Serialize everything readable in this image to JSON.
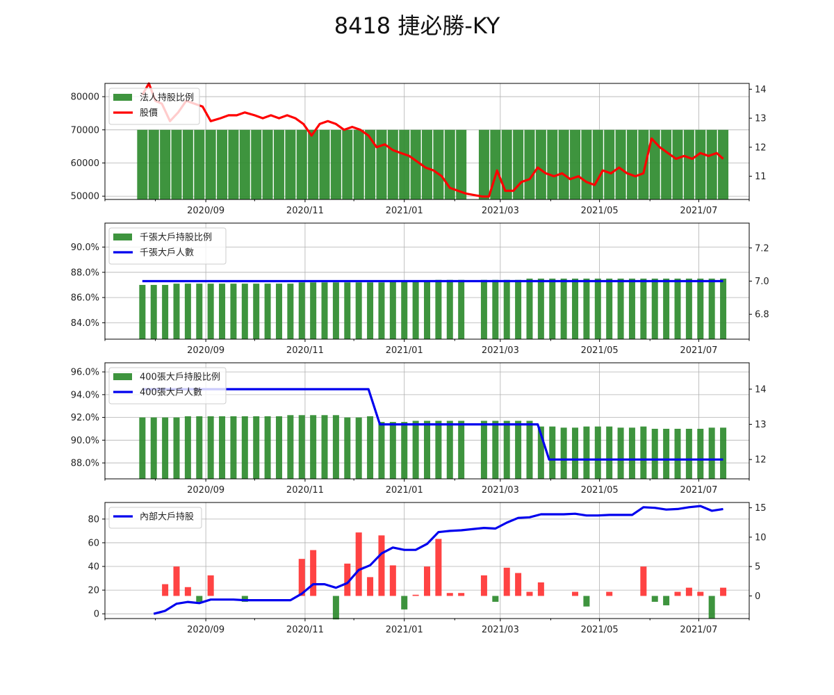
{
  "title": "8418 捷必勝-KY",
  "colors": {
    "bar_green": "#2e8b2e",
    "bar_red": "#ff3333",
    "line_red": "#ff0000",
    "line_blue": "#0000ee",
    "grid": "#b0b0b0"
  },
  "x_ticks": [
    "2020/09",
    "2020/11",
    "2021/01",
    "2021/03",
    "2021/05",
    "2021/07"
  ],
  "chart_data": [
    {
      "type": "bar",
      "legend": [
        "法人持股比例",
        "股價"
      ],
      "legend_position": "upper-left",
      "left_axis": {
        "range": [
          49000,
          84000
        ],
        "ticks": [
          "50000",
          "60000",
          "70000",
          "80000"
        ]
      },
      "right_axis": {
        "range": [
          10.2,
          14.2
        ],
        "ticks": [
          "11",
          "12",
          "13",
          "14"
        ]
      },
      "bar_dates": [
        "2020-07-24",
        "2020-07-31",
        "2020-08-07",
        "2020-08-14",
        "2020-08-21",
        "2020-08-28",
        "2020-09-04",
        "2020-09-11",
        "2020-09-18",
        "2020-09-25",
        "2020-10-02",
        "2020-10-09",
        "2020-10-16",
        "2020-10-23",
        "2020-10-30",
        "2020-11-06",
        "2020-11-13",
        "2020-11-20",
        "2020-11-27",
        "2020-12-04",
        "2020-12-11",
        "2020-12-18",
        "2020-12-25",
        "2021-01-01",
        "2021-01-08",
        "2021-01-15",
        "2021-01-22",
        "2021-01-29",
        "2021-02-05",
        "2021-02-19",
        "2021-02-26",
        "2021-03-05",
        "2021-03-12",
        "2021-03-19",
        "2021-03-26",
        "2021-04-02",
        "2021-04-09",
        "2021-04-16",
        "2021-04-23",
        "2021-04-30",
        "2021-05-07",
        "2021-05-14",
        "2021-05-21",
        "2021-05-28",
        "2021-06-04",
        "2021-06-11",
        "2021-06-18",
        "2021-06-25",
        "2021-07-02",
        "2021-07-09",
        "2021-07-16"
      ],
      "bar_values": [
        70000,
        70000,
        70000,
        70000,
        70000,
        70000,
        70000,
        70000,
        70000,
        70000,
        70000,
        70000,
        70000,
        70000,
        70000,
        70000,
        70000,
        70000,
        70000,
        70000,
        70000,
        70000,
        70000,
        70000,
        70000,
        70000,
        70000,
        70000,
        70000,
        70000,
        70000,
        70000,
        70000,
        70000,
        70000,
        70000,
        70000,
        70000,
        70000,
        70000,
        70000,
        70000,
        70000,
        70000,
        70000,
        70000,
        70000,
        70000,
        70000,
        70000,
        70000
      ],
      "price_dates": [
        "2020-07-24",
        "2020-07-28",
        "2020-08-01",
        "2020-08-05",
        "2020-08-10",
        "2020-08-15",
        "2020-08-20",
        "2020-08-25",
        "2020-08-30",
        "2020-09-04",
        "2020-09-10",
        "2020-09-15",
        "2020-09-20",
        "2020-09-25",
        "2020-10-01",
        "2020-10-06",
        "2020-10-11",
        "2020-10-16",
        "2020-10-21",
        "2020-10-26",
        "2020-10-31",
        "2020-11-05",
        "2020-11-10",
        "2020-11-15",
        "2020-11-20",
        "2020-11-25",
        "2020-11-30",
        "2020-12-05",
        "2020-12-10",
        "2020-12-15",
        "2020-12-20",
        "2020-12-25",
        "2020-12-30",
        "2021-01-04",
        "2021-01-09",
        "2021-01-14",
        "2021-01-19",
        "2021-01-24",
        "2021-01-29",
        "2021-02-03",
        "2021-02-08",
        "2021-02-18",
        "2021-02-22",
        "2021-02-27",
        "2021-03-04",
        "2021-03-09",
        "2021-03-14",
        "2021-03-19",
        "2021-03-24",
        "2021-03-29",
        "2021-04-03",
        "2021-04-08",
        "2021-04-13",
        "2021-04-18",
        "2021-04-23",
        "2021-04-28",
        "2021-05-03",
        "2021-05-08",
        "2021-05-13",
        "2021-05-18",
        "2021-05-23",
        "2021-05-28",
        "2021-06-02",
        "2021-06-07",
        "2021-06-12",
        "2021-06-17",
        "2021-06-22",
        "2021-06-27",
        "2021-07-02",
        "2021-07-07",
        "2021-07-12",
        "2021-07-16"
      ],
      "price_values": [
        13.8,
        14.2,
        13.6,
        13.5,
        12.9,
        13.2,
        13.6,
        13.5,
        13.4,
        12.9,
        13.0,
        13.1,
        13.1,
        13.2,
        13.1,
        13.0,
        13.1,
        13.0,
        13.1,
        13.0,
        12.8,
        12.4,
        12.8,
        12.9,
        12.8,
        12.6,
        12.7,
        12.6,
        12.4,
        12.0,
        12.1,
        11.9,
        11.8,
        11.7,
        11.5,
        11.3,
        11.2,
        11.0,
        10.6,
        10.5,
        10.4,
        10.3,
        10.3,
        11.2,
        10.5,
        10.5,
        10.8,
        10.9,
        11.3,
        11.1,
        11.0,
        11.1,
        10.9,
        11.0,
        10.8,
        10.7,
        11.2,
        11.1,
        11.3,
        11.1,
        11.0,
        11.1,
        12.3,
        12.0,
        11.8,
        11.6,
        11.7,
        11.6,
        11.8,
        11.7,
        11.8,
        11.6
      ]
    },
    {
      "type": "bar",
      "legend": [
        "千張大戶持股比例",
        "千張大戶人數"
      ],
      "legend_position": "upper-left",
      "left_axis": {
        "range": [
          82.7,
          91.9
        ],
        "ticks": [
          "84.0%",
          "86.0%",
          "88.0%",
          "90.0%"
        ]
      },
      "right_axis": {
        "range": [
          6.65,
          7.35
        ],
        "ticks": [
          "6.8",
          "7.0",
          "7.2"
        ]
      },
      "bar_dates": [
        "2020-07-24",
        "2020-07-31",
        "2020-08-07",
        "2020-08-14",
        "2020-08-21",
        "2020-08-28",
        "2020-09-04",
        "2020-09-11",
        "2020-09-18",
        "2020-09-25",
        "2020-10-02",
        "2020-10-09",
        "2020-10-16",
        "2020-10-23",
        "2020-10-30",
        "2020-11-06",
        "2020-11-13",
        "2020-11-20",
        "2020-11-27",
        "2020-12-04",
        "2020-12-11",
        "2020-12-18",
        "2020-12-25",
        "2021-01-01",
        "2021-01-08",
        "2021-01-15",
        "2021-01-22",
        "2021-01-29",
        "2021-02-05",
        "2021-02-19",
        "2021-02-26",
        "2021-03-05",
        "2021-03-12",
        "2021-03-19",
        "2021-03-26",
        "2021-04-02",
        "2021-04-09",
        "2021-04-16",
        "2021-04-23",
        "2021-04-30",
        "2021-05-07",
        "2021-05-14",
        "2021-05-21",
        "2021-05-28",
        "2021-06-04",
        "2021-06-11",
        "2021-06-18",
        "2021-06-25",
        "2021-07-02",
        "2021-07-09",
        "2021-07-16"
      ],
      "bar_values": [
        87.0,
        87.0,
        87.0,
        87.1,
        87.1,
        87.1,
        87.1,
        87.1,
        87.1,
        87.1,
        87.1,
        87.1,
        87.1,
        87.1,
        87.2,
        87.2,
        87.2,
        87.2,
        87.2,
        87.2,
        87.2,
        87.2,
        87.3,
        87.3,
        87.3,
        87.3,
        87.4,
        87.4,
        87.4,
        87.4,
        87.4,
        87.4,
        87.4,
        87.5,
        87.5,
        87.5,
        87.5,
        87.5,
        87.5,
        87.5,
        87.5,
        87.5,
        87.5,
        87.5,
        87.5,
        87.5,
        87.5,
        87.5,
        87.5,
        87.5,
        87.5
      ],
      "line_dates": [
        "2020-07-24",
        "2021-07-16"
      ],
      "line_values": [
        7.0,
        7.0
      ]
    },
    {
      "type": "bar",
      "legend": [
        "400張大戶持股比例",
        "400張大戶人數"
      ],
      "legend_position": "upper-left",
      "left_axis": {
        "range": [
          86.6,
          96.8
        ],
        "ticks": [
          "88.0%",
          "90.0%",
          "92.0%",
          "94.0%",
          "96.0%"
        ]
      },
      "right_axis": {
        "range": [
          11.45,
          14.75
        ],
        "ticks": [
          "12",
          "13",
          "14"
        ]
      },
      "bar_dates": [
        "2020-07-24",
        "2020-07-31",
        "2020-08-07",
        "2020-08-14",
        "2020-08-21",
        "2020-08-28",
        "2020-09-04",
        "2020-09-11",
        "2020-09-18",
        "2020-09-25",
        "2020-10-02",
        "2020-10-09",
        "2020-10-16",
        "2020-10-23",
        "2020-10-30",
        "2020-11-06",
        "2020-11-13",
        "2020-11-20",
        "2020-11-27",
        "2020-12-04",
        "2020-12-11",
        "2020-12-18",
        "2020-12-25",
        "2021-01-01",
        "2021-01-08",
        "2021-01-15",
        "2021-01-22",
        "2021-01-29",
        "2021-02-05",
        "2021-02-19",
        "2021-02-26",
        "2021-03-05",
        "2021-03-12",
        "2021-03-19",
        "2021-03-26",
        "2021-04-02",
        "2021-04-09",
        "2021-04-16",
        "2021-04-23",
        "2021-04-30",
        "2021-05-07",
        "2021-05-14",
        "2021-05-21",
        "2021-05-28",
        "2021-06-04",
        "2021-06-11",
        "2021-06-18",
        "2021-06-25",
        "2021-07-02",
        "2021-07-09",
        "2021-07-16"
      ],
      "bar_values": [
        92.0,
        92.0,
        92.0,
        92.0,
        92.1,
        92.1,
        92.1,
        92.1,
        92.1,
        92.1,
        92.1,
        92.1,
        92.1,
        92.2,
        92.2,
        92.2,
        92.2,
        92.2,
        92.0,
        92.0,
        92.1,
        91.6,
        91.6,
        91.6,
        91.7,
        91.7,
        91.7,
        91.7,
        91.7,
        91.7,
        91.7,
        91.7,
        91.7,
        91.7,
        91.2,
        91.2,
        91.1,
        91.1,
        91.2,
        91.2,
        91.2,
        91.1,
        91.1,
        91.2,
        91.0,
        91.0,
        91.0,
        91.0,
        91.0,
        91.1,
        91.1
      ],
      "line_dates": [
        "2020-07-24",
        "2020-12-10",
        "2020-12-17",
        "2021-03-24",
        "2021-03-31",
        "2021-07-16"
      ],
      "line_values": [
        14,
        14,
        13,
        13,
        12,
        12
      ]
    },
    {
      "type": "bar",
      "legend": [
        "內部大戶持股"
      ],
      "legend_position": "upper-left",
      "left_axis": {
        "range": [
          -4,
          94
        ],
        "ticks": [
          "0",
          "20",
          "40",
          "60",
          "80"
        ]
      },
      "right_axis": {
        "range": [
          -3.85,
          15.9
        ],
        "ticks": [
          "0",
          "5",
          "10",
          "15"
        ]
      },
      "bar_dates": [
        "2020-08-07",
        "2020-08-14",
        "2020-08-21",
        "2020-08-28",
        "2020-09-04",
        "2020-09-25",
        "2020-10-30",
        "2020-11-06",
        "2020-11-20",
        "2020-11-27",
        "2020-12-04",
        "2020-12-11",
        "2020-12-18",
        "2020-12-25",
        "2021-01-01",
        "2021-01-08",
        "2021-01-15",
        "2021-01-22",
        "2021-01-29",
        "2021-02-05",
        "2021-02-19",
        "2021-02-26",
        "2021-03-05",
        "2021-03-12",
        "2021-03-19",
        "2021-03-26",
        "2021-04-16",
        "2021-04-23",
        "2021-05-07",
        "2021-05-28",
        "2021-06-04",
        "2021-06-11",
        "2021-06-18",
        "2021-06-25",
        "2021-07-02",
        "2021-07-09",
        "2021-07-16"
      ],
      "bar_values": [
        2,
        5,
        1.5,
        -1,
        3.5,
        -1,
        6.3,
        7.8,
        -4,
        5.5,
        10.8,
        3.2,
        10.3,
        5.2,
        -2.3,
        0.2,
        5,
        9.7,
        0.5,
        0.5,
        3.5,
        -1,
        4.8,
        3.9,
        0.7,
        2.3,
        0.7,
        -1.8,
        0.7,
        5,
        -1,
        -1.6,
        0.7,
        1.4,
        0.7,
        -3.8,
        1.4
      ],
      "line_dates": [
        "2020-07-31",
        "2020-08-07",
        "2020-08-14",
        "2020-08-21",
        "2020-08-28",
        "2020-09-04",
        "2020-09-11",
        "2020-09-18",
        "2020-09-25",
        "2020-10-02",
        "2020-10-09",
        "2020-10-16",
        "2020-10-23",
        "2020-10-30",
        "2020-11-06",
        "2020-11-13",
        "2020-11-20",
        "2020-11-27",
        "2020-12-04",
        "2020-12-11",
        "2020-12-18",
        "2020-12-25",
        "2021-01-01",
        "2021-01-08",
        "2021-01-15",
        "2021-01-22",
        "2021-01-29",
        "2021-02-05",
        "2021-02-19",
        "2021-02-26",
        "2021-03-05",
        "2021-03-12",
        "2021-03-19",
        "2021-03-26",
        "2021-04-02",
        "2021-04-09",
        "2021-04-16",
        "2021-04-23",
        "2021-04-30",
        "2021-05-07",
        "2021-05-14",
        "2021-05-21",
        "2021-05-28",
        "2021-06-04",
        "2021-06-11",
        "2021-06-18",
        "2021-06-25",
        "2021-07-02",
        "2021-07-09",
        "2021-07-16"
      ],
      "line_values": [
        0,
        2.5,
        8.5,
        10,
        9,
        12,
        12,
        12,
        11.5,
        11.5,
        11.5,
        11.5,
        11.5,
        17,
        25,
        25,
        22,
        26,
        37,
        41,
        51,
        56,
        54,
        54,
        59,
        69,
        70,
        70.5,
        72.5,
        72,
        77,
        81,
        81.5,
        84,
        84,
        84,
        84.5,
        83,
        83,
        83.5,
        83.5,
        83.5,
        90,
        89.5,
        88,
        88.5,
        90,
        91,
        87,
        88.5
      ]
    }
  ]
}
